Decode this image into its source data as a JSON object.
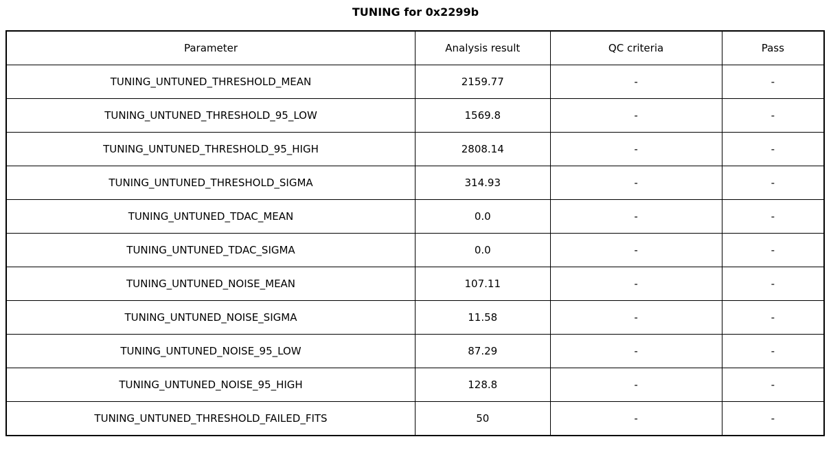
{
  "title": "TUNING for 0x2299b",
  "colors": {
    "border": "#000000",
    "background": "#ffffff",
    "text": "#000000"
  },
  "table": {
    "headers": {
      "parameter": "Parameter",
      "analysis_result": "Analysis result",
      "qc_criteria": "QC criteria",
      "pass": "Pass"
    }
  },
  "chart_data": {
    "type": "table",
    "title": "TUNING for 0x2299b",
    "columns": [
      "Parameter",
      "Analysis result",
      "QC criteria",
      "Pass"
    ],
    "rows": [
      {
        "parameter": "TUNING_UNTUNED_THRESHOLD_MEAN",
        "analysis_result": "2159.77",
        "qc_criteria": "-",
        "pass": "-"
      },
      {
        "parameter": "TUNING_UNTUNED_THRESHOLD_95_LOW",
        "analysis_result": "1569.8",
        "qc_criteria": "-",
        "pass": "-"
      },
      {
        "parameter": "TUNING_UNTUNED_THRESHOLD_95_HIGH",
        "analysis_result": "2808.14",
        "qc_criteria": "-",
        "pass": "-"
      },
      {
        "parameter": "TUNING_UNTUNED_THRESHOLD_SIGMA",
        "analysis_result": "314.93",
        "qc_criteria": "-",
        "pass": "-"
      },
      {
        "parameter": "TUNING_UNTUNED_TDAC_MEAN",
        "analysis_result": "0.0",
        "qc_criteria": "-",
        "pass": "-"
      },
      {
        "parameter": "TUNING_UNTUNED_TDAC_SIGMA",
        "analysis_result": "0.0",
        "qc_criteria": "-",
        "pass": "-"
      },
      {
        "parameter": "TUNING_UNTUNED_NOISE_MEAN",
        "analysis_result": "107.11",
        "qc_criteria": "-",
        "pass": "-"
      },
      {
        "parameter": "TUNING_UNTUNED_NOISE_SIGMA",
        "analysis_result": "11.58",
        "qc_criteria": "-",
        "pass": "-"
      },
      {
        "parameter": "TUNING_UNTUNED_NOISE_95_LOW",
        "analysis_result": "87.29",
        "qc_criteria": "-",
        "pass": "-"
      },
      {
        "parameter": "TUNING_UNTUNED_NOISE_95_HIGH",
        "analysis_result": "128.8",
        "qc_criteria": "-",
        "pass": "-"
      },
      {
        "parameter": "TUNING_UNTUNED_THRESHOLD_FAILED_FITS",
        "analysis_result": "50",
        "qc_criteria": "-",
        "pass": "-"
      }
    ]
  }
}
